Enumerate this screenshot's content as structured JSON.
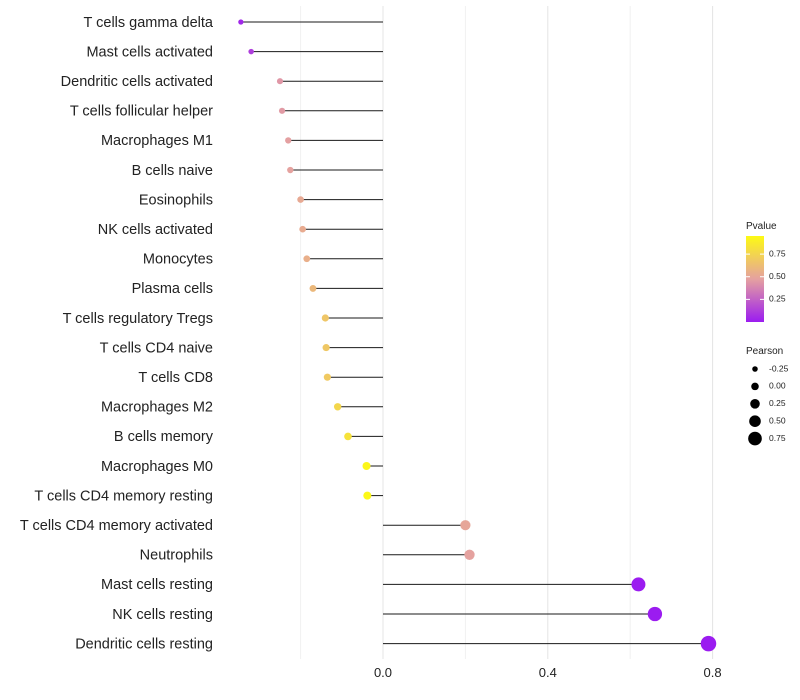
{
  "chart_data": {
    "type": "lollipop",
    "title": "",
    "xlabel": "",
    "ylabel": "",
    "xlim": [
      -0.43,
      0.81
    ],
    "x_ticks": [
      0.0,
      0.4,
      0.8
    ],
    "x_tick_labels": [
      "0.0",
      "0.4",
      "0.8"
    ],
    "grid": true,
    "categories": [
      "T cells gamma delta",
      "Mast cells activated",
      "Dendritic cells activated",
      "T cells follicular helper",
      "Macrophages M1",
      "B cells naive",
      "Eosinophils",
      "NK cells activated",
      "Monocytes",
      "Plasma cells",
      "T cells regulatory  Tregs ",
      "T cells CD4 naive",
      "T cells CD8",
      "Macrophages M2",
      "B cells memory",
      "Macrophages M0",
      "T cells CD4 memory resting",
      "T cells CD4 memory activated",
      "Neutrophils",
      "Mast cells resting",
      "NK cells resting",
      "Dendritic cells resting"
    ],
    "pearson": [
      -0.345,
      -0.32,
      -0.25,
      -0.245,
      -0.23,
      -0.225,
      -0.2,
      -0.195,
      -0.185,
      -0.17,
      -0.14,
      -0.138,
      -0.135,
      -0.11,
      -0.085,
      -0.04,
      -0.038,
      0.2,
      0.21,
      0.62,
      0.66,
      0.79
    ],
    "pvalue": [
      0.04,
      0.12,
      0.44,
      0.45,
      0.47,
      0.48,
      0.52,
      0.53,
      0.55,
      0.6,
      0.67,
      0.68,
      0.69,
      0.76,
      0.82,
      0.93,
      0.94,
      0.5,
      0.48,
      0.0001,
      5e-05,
      1e-05
    ],
    "legend": {
      "placement": "right",
      "color": {
        "title": "Pvalue",
        "ticks": [
          "0.75",
          "0.50",
          "0.25"
        ],
        "tick_values": [
          0.75,
          0.5,
          0.25
        ],
        "range": [
          0.0,
          0.95
        ],
        "low_color": "#9b1cf0",
        "mid_color": "#e5a1a0",
        "high_color": "#fdfa14"
      },
      "size": {
        "title": "Pearson",
        "labels": [
          "-0.25",
          "0.00",
          "0.25",
          "0.50",
          "0.75"
        ],
        "values": [
          -0.25,
          0.0,
          0.25,
          0.5,
          0.75
        ]
      }
    }
  }
}
